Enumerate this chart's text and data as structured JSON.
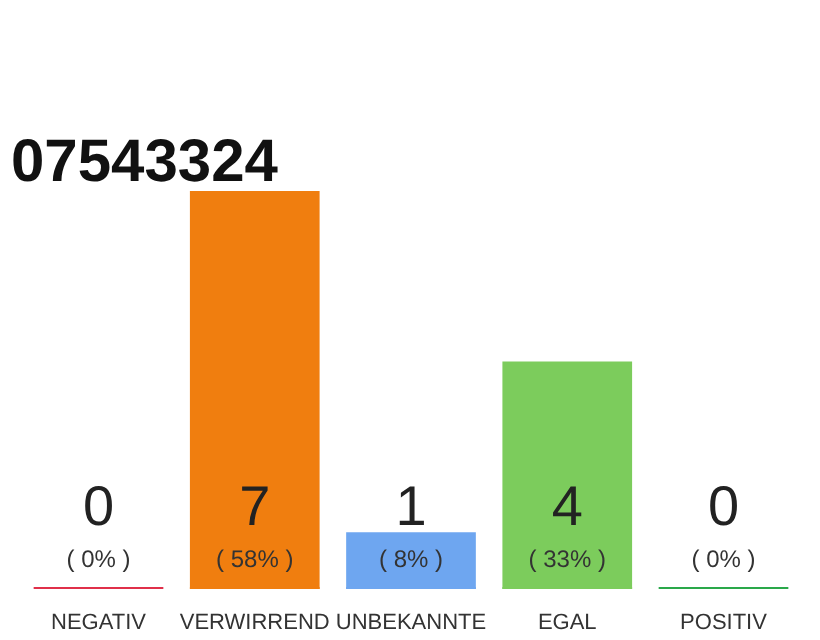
{
  "chart_data": {
    "type": "bar",
    "title": "07543324",
    "categories": [
      "NEGATIV",
      "VERWIRREND",
      "UNBEKANNTE",
      "EGAL",
      "POSITIV"
    ],
    "values": [
      0,
      7,
      1,
      4,
      0
    ],
    "colors": [
      "#e0304a",
      "#f07e0f",
      "#6ea6f0",
      "#7ccc5c",
      "#2aa84a"
    ],
    "data_labels": true,
    "annotations": [
      "( 0% )",
      "( 58% )",
      "( 8% )",
      "( 33% )",
      "( 0% )"
    ],
    "ylim": [
      0,
      7
    ],
    "tick_labels": "x",
    "grid": false
  }
}
